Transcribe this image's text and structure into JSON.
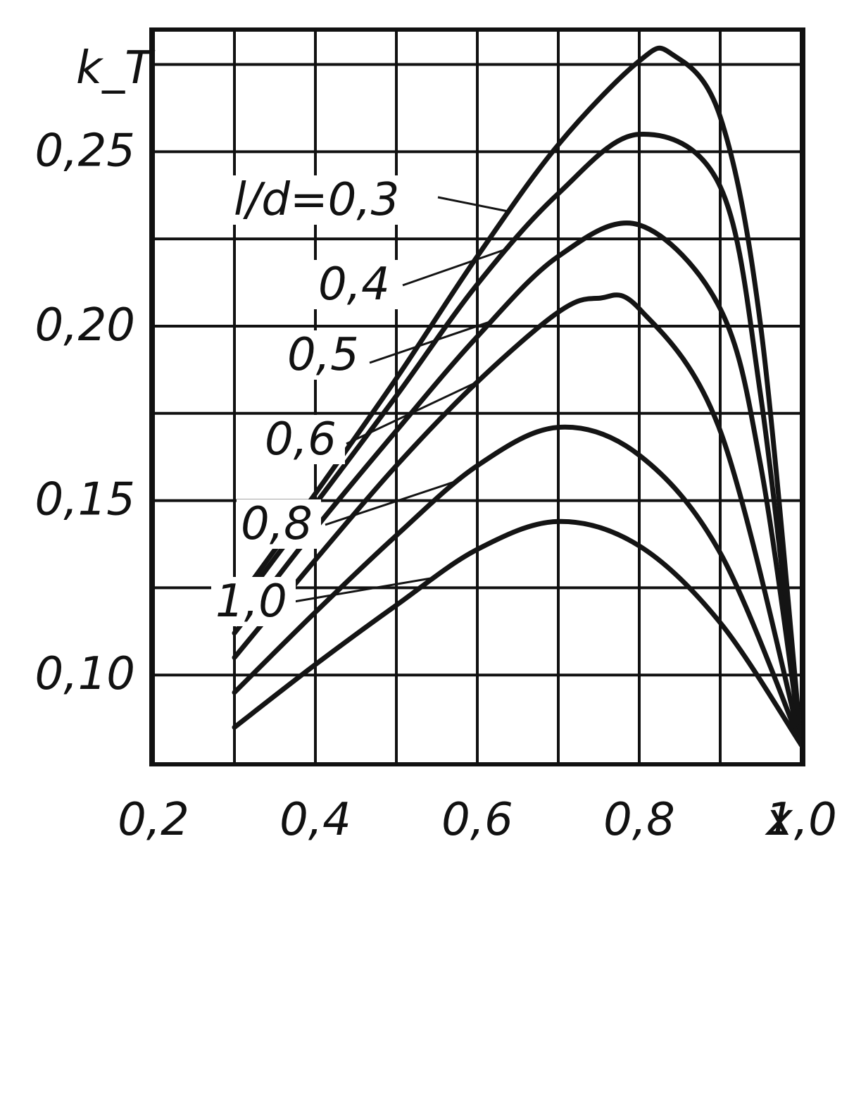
{
  "chart_data": {
    "type": "line",
    "xlabel": "x",
    "ylabel": "k_T",
    "xlim": [
      0.2,
      1.0
    ],
    "ylim": [
      0.075,
      0.285
    ],
    "x_ticks": [
      {
        "value": 0.2,
        "label": "0,2"
      },
      {
        "value": 0.4,
        "label": "0,4"
      },
      {
        "value": 0.6,
        "label": "0,6"
      },
      {
        "value": 0.8,
        "label": "0,8"
      },
      {
        "value": 1.0,
        "label": "1,0"
      }
    ],
    "y_ticks": [
      {
        "value": 0.1,
        "label": "0,10"
      },
      {
        "value": 0.15,
        "label": "0,15"
      },
      {
        "value": 0.2,
        "label": "0,20"
      },
      {
        "value": 0.25,
        "label": "0,25"
      }
    ],
    "grid": true,
    "series": [
      {
        "name": "l/d=0,3",
        "x": [
          0.3,
          0.4,
          0.5,
          0.6,
          0.7,
          0.8,
          0.84,
          0.9,
          0.95,
          1.0
        ],
        "y": [
          0.12,
          0.152,
          0.185,
          0.22,
          0.252,
          0.276,
          0.278,
          0.26,
          0.2,
          0.08
        ]
      },
      {
        "name": "0,4",
        "x": [
          0.3,
          0.4,
          0.5,
          0.6,
          0.7,
          0.8,
          0.9,
          0.95,
          1.0
        ],
        "y": [
          0.118,
          0.149,
          0.18,
          0.212,
          0.238,
          0.255,
          0.24,
          0.18,
          0.08
        ]
      },
      {
        "name": "0,5",
        "x": [
          0.3,
          0.4,
          0.5,
          0.6,
          0.7,
          0.8,
          0.9,
          0.95,
          1.0
        ],
        "y": [
          0.112,
          0.142,
          0.17,
          0.197,
          0.22,
          0.229,
          0.205,
          0.16,
          0.08
        ]
      },
      {
        "name": "0,6",
        "x": [
          0.3,
          0.4,
          0.5,
          0.6,
          0.7,
          0.75,
          0.8,
          0.9,
          1.0
        ],
        "y": [
          0.105,
          0.133,
          0.16,
          0.184,
          0.204,
          0.208,
          0.205,
          0.17,
          0.08
        ]
      },
      {
        "name": "0,8",
        "x": [
          0.3,
          0.4,
          0.5,
          0.6,
          0.7,
          0.8,
          0.9,
          1.0
        ],
        "y": [
          0.095,
          0.118,
          0.14,
          0.16,
          0.171,
          0.163,
          0.135,
          0.08
        ]
      },
      {
        "name": "1,0",
        "x": [
          0.3,
          0.4,
          0.5,
          0.6,
          0.7,
          0.8,
          0.9,
          1.0
        ],
        "y": [
          0.085,
          0.103,
          0.12,
          0.136,
          0.144,
          0.137,
          0.115,
          0.08
        ]
      }
    ],
    "curve_labels": [
      "l/d=0,3",
      "0,4",
      "0,5",
      "0,6",
      "0,8",
      "1,0"
    ]
  }
}
